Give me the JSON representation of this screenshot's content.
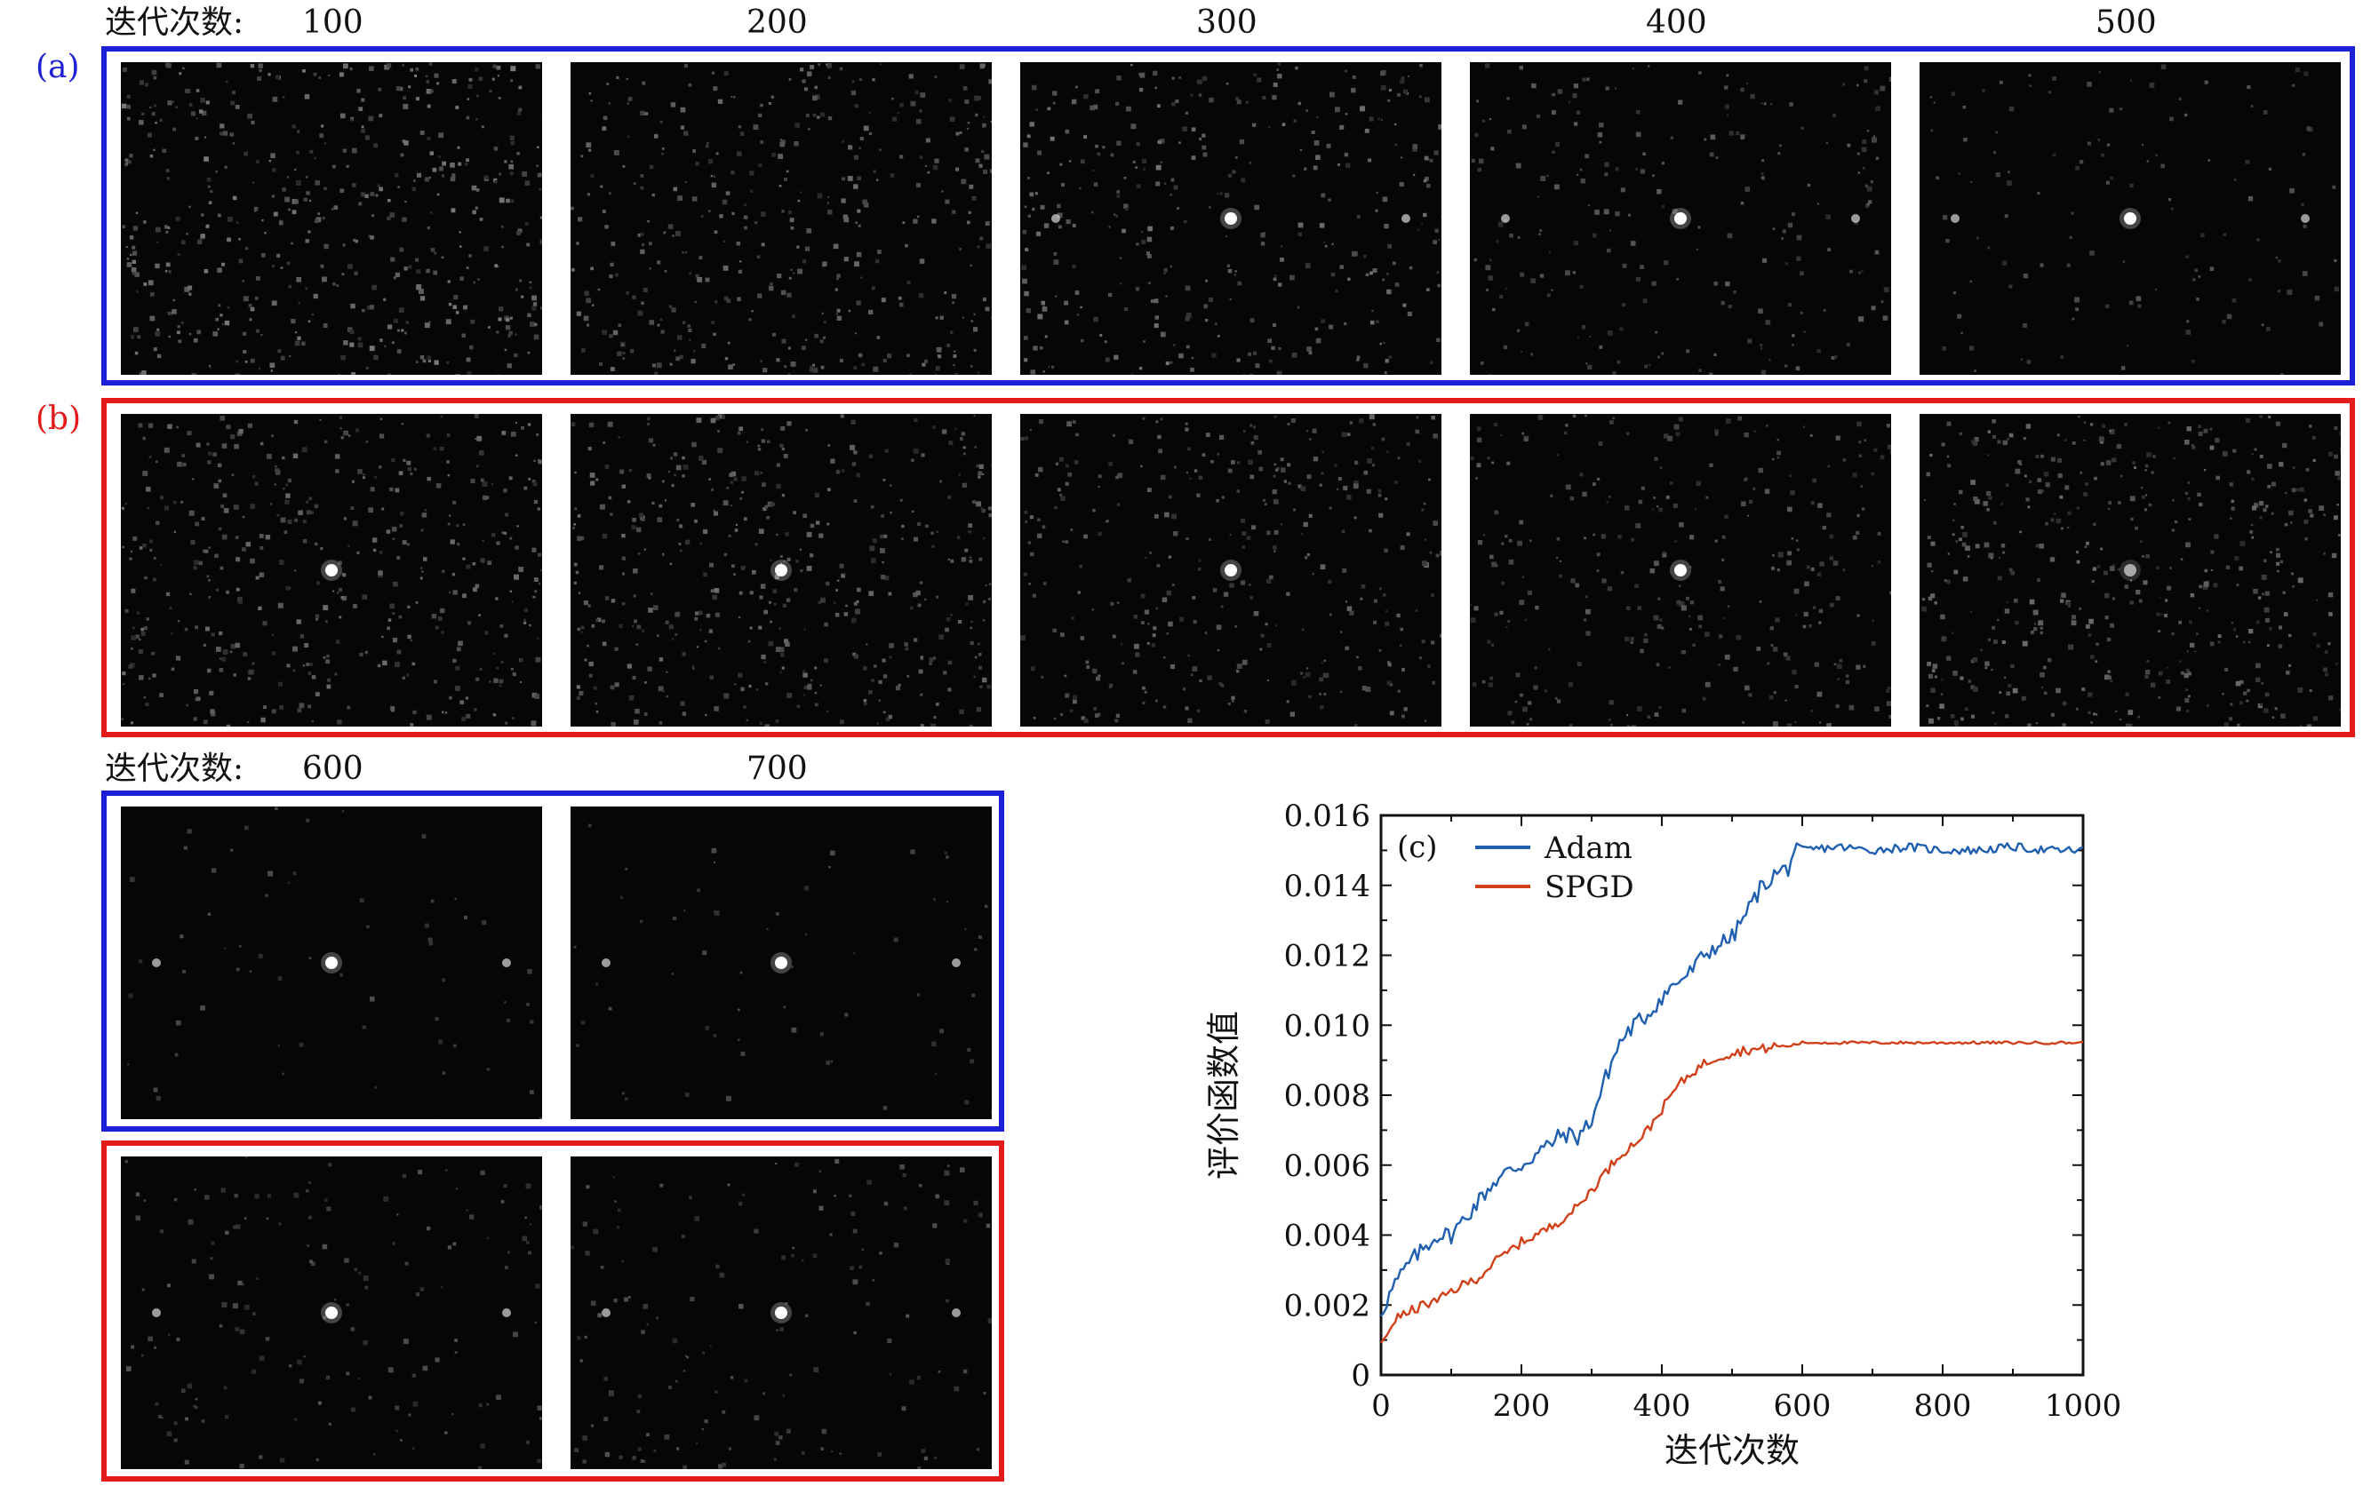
{
  "header_top": {
    "label": "迭代次数:",
    "iterations": [
      "100",
      "200",
      "300",
      "400",
      "500"
    ]
  },
  "header_bottom": {
    "label": "迭代次数:",
    "iterations": [
      "600",
      "700"
    ]
  },
  "panels": {
    "a": "(a)",
    "b": "(b)",
    "c": "(c)"
  },
  "colors": {
    "adam": "#1f5fb0",
    "spgd": "#d2401a",
    "frame_a": "#1c1fd6",
    "frame_b": "#e31b1b"
  },
  "chart_data": {
    "type": "line",
    "panel_label": "(c)",
    "xlabel": "迭代次数",
    "ylabel": "评价函数值",
    "xlim": [
      0,
      1000
    ],
    "ylim": [
      0,
      0.016
    ],
    "xticks": [
      0,
      200,
      400,
      600,
      800,
      1000
    ],
    "xtick_labels": [
      "0",
      "200",
      "400",
      "600",
      "800",
      "1000"
    ],
    "yticks": [
      0,
      0.002,
      0.004,
      0.006,
      0.008,
      0.01,
      0.012,
      0.014,
      0.016
    ],
    "ytick_labels": [
      "0",
      "0.002",
      "0.004",
      "0.006",
      "0.008",
      "0.010",
      "0.012",
      "0.014",
      "0.016"
    ],
    "legend_position": "top-left",
    "series": [
      {
        "name": "Adam",
        "color": "#1f5fb0",
        "x": [
          0,
          10,
          20,
          40,
          60,
          80,
          100,
          120,
          140,
          160,
          180,
          200,
          220,
          240,
          260,
          280,
          300,
          320,
          340,
          360,
          380,
          400,
          420,
          440,
          460,
          480,
          500,
          520,
          540,
          560,
          580,
          590,
          600,
          650,
          700,
          750,
          800,
          850,
          900,
          950,
          1000
        ],
        "y": [
          0.0018,
          0.0022,
          0.0026,
          0.0032,
          0.0036,
          0.004,
          0.004,
          0.0045,
          0.005,
          0.0055,
          0.0058,
          0.006,
          0.0063,
          0.0066,
          0.0069,
          0.0068,
          0.0073,
          0.0085,
          0.0095,
          0.01,
          0.0103,
          0.0108,
          0.0112,
          0.0115,
          0.012,
          0.0123,
          0.0125,
          0.0132,
          0.0139,
          0.0143,
          0.0145,
          0.0151,
          0.015,
          0.0151,
          0.015,
          0.0151,
          0.015,
          0.015,
          0.0151,
          0.015,
          0.015
        ]
      },
      {
        "name": "SPGD",
        "color": "#d2401a",
        "x": [
          0,
          20,
          40,
          60,
          80,
          100,
          120,
          140,
          160,
          180,
          200,
          220,
          240,
          260,
          280,
          300,
          320,
          340,
          360,
          380,
          400,
          420,
          440,
          460,
          480,
          500,
          520,
          540,
          560,
          580,
          600,
          650,
          700,
          750,
          800,
          850,
          900,
          950,
          1000
        ],
        "y": [
          0.0009,
          0.0016,
          0.0018,
          0.002,
          0.0021,
          0.0024,
          0.0026,
          0.0028,
          0.0032,
          0.0035,
          0.0038,
          0.004,
          0.0042,
          0.0045,
          0.0048,
          0.0053,
          0.0058,
          0.0063,
          0.0066,
          0.007,
          0.0076,
          0.0082,
          0.0086,
          0.0089,
          0.0091,
          0.0092,
          0.0093,
          0.0093,
          0.0094,
          0.0094,
          0.0095,
          0.0095,
          0.0095,
          0.0095,
          0.0095,
          0.0095,
          0.0095,
          0.0095,
          0.0095
        ]
      }
    ]
  }
}
